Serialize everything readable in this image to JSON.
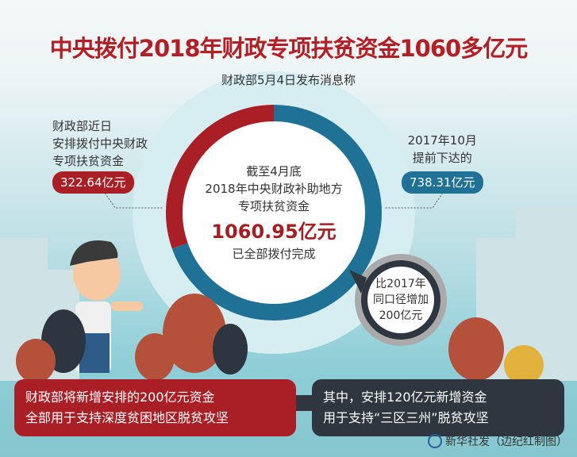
{
  "title": "中央拨付2018年财政专项扶贫资金1060多亿元",
  "subtitle": "财政部5月4日发布消息称",
  "left_note": {
    "lines": [
      "财政部近日",
      "安排拨付中央财政",
      "专项扶贫资金"
    ],
    "amount": "322.64亿元"
  },
  "right_note": {
    "lines": [
      "2017年10月",
      "提前下达的"
    ],
    "amount": "738.31亿元"
  },
  "center": {
    "lines": [
      "截至4月底",
      "2018年中央财政补助地方",
      "专项扶贫资金"
    ],
    "total": "1060.95亿元",
    "status": "已全部拨付完成"
  },
  "bubble": {
    "lines": [
      "比2017年",
      "同口径增加",
      "200亿元"
    ]
  },
  "bottom_left": {
    "lines": [
      "财政部将新增安排的200亿元资金",
      "全部用于支持深度贫困地区脱贫攻坚"
    ]
  },
  "bottom_right": {
    "lines": [
      "其中，安排120亿元新增资金",
      "用于支持“三区三州”脱贫攻坚"
    ]
  },
  "credit": "新华社发（边纪红制图）",
  "donut": {
    "values": [
      322.64,
      738.31
    ],
    "colors": [
      "#a91f25",
      "#1f7196"
    ]
  },
  "colors": {
    "red": "#a91f25",
    "blue": "#1f7196",
    "dark": "#2f3640"
  }
}
